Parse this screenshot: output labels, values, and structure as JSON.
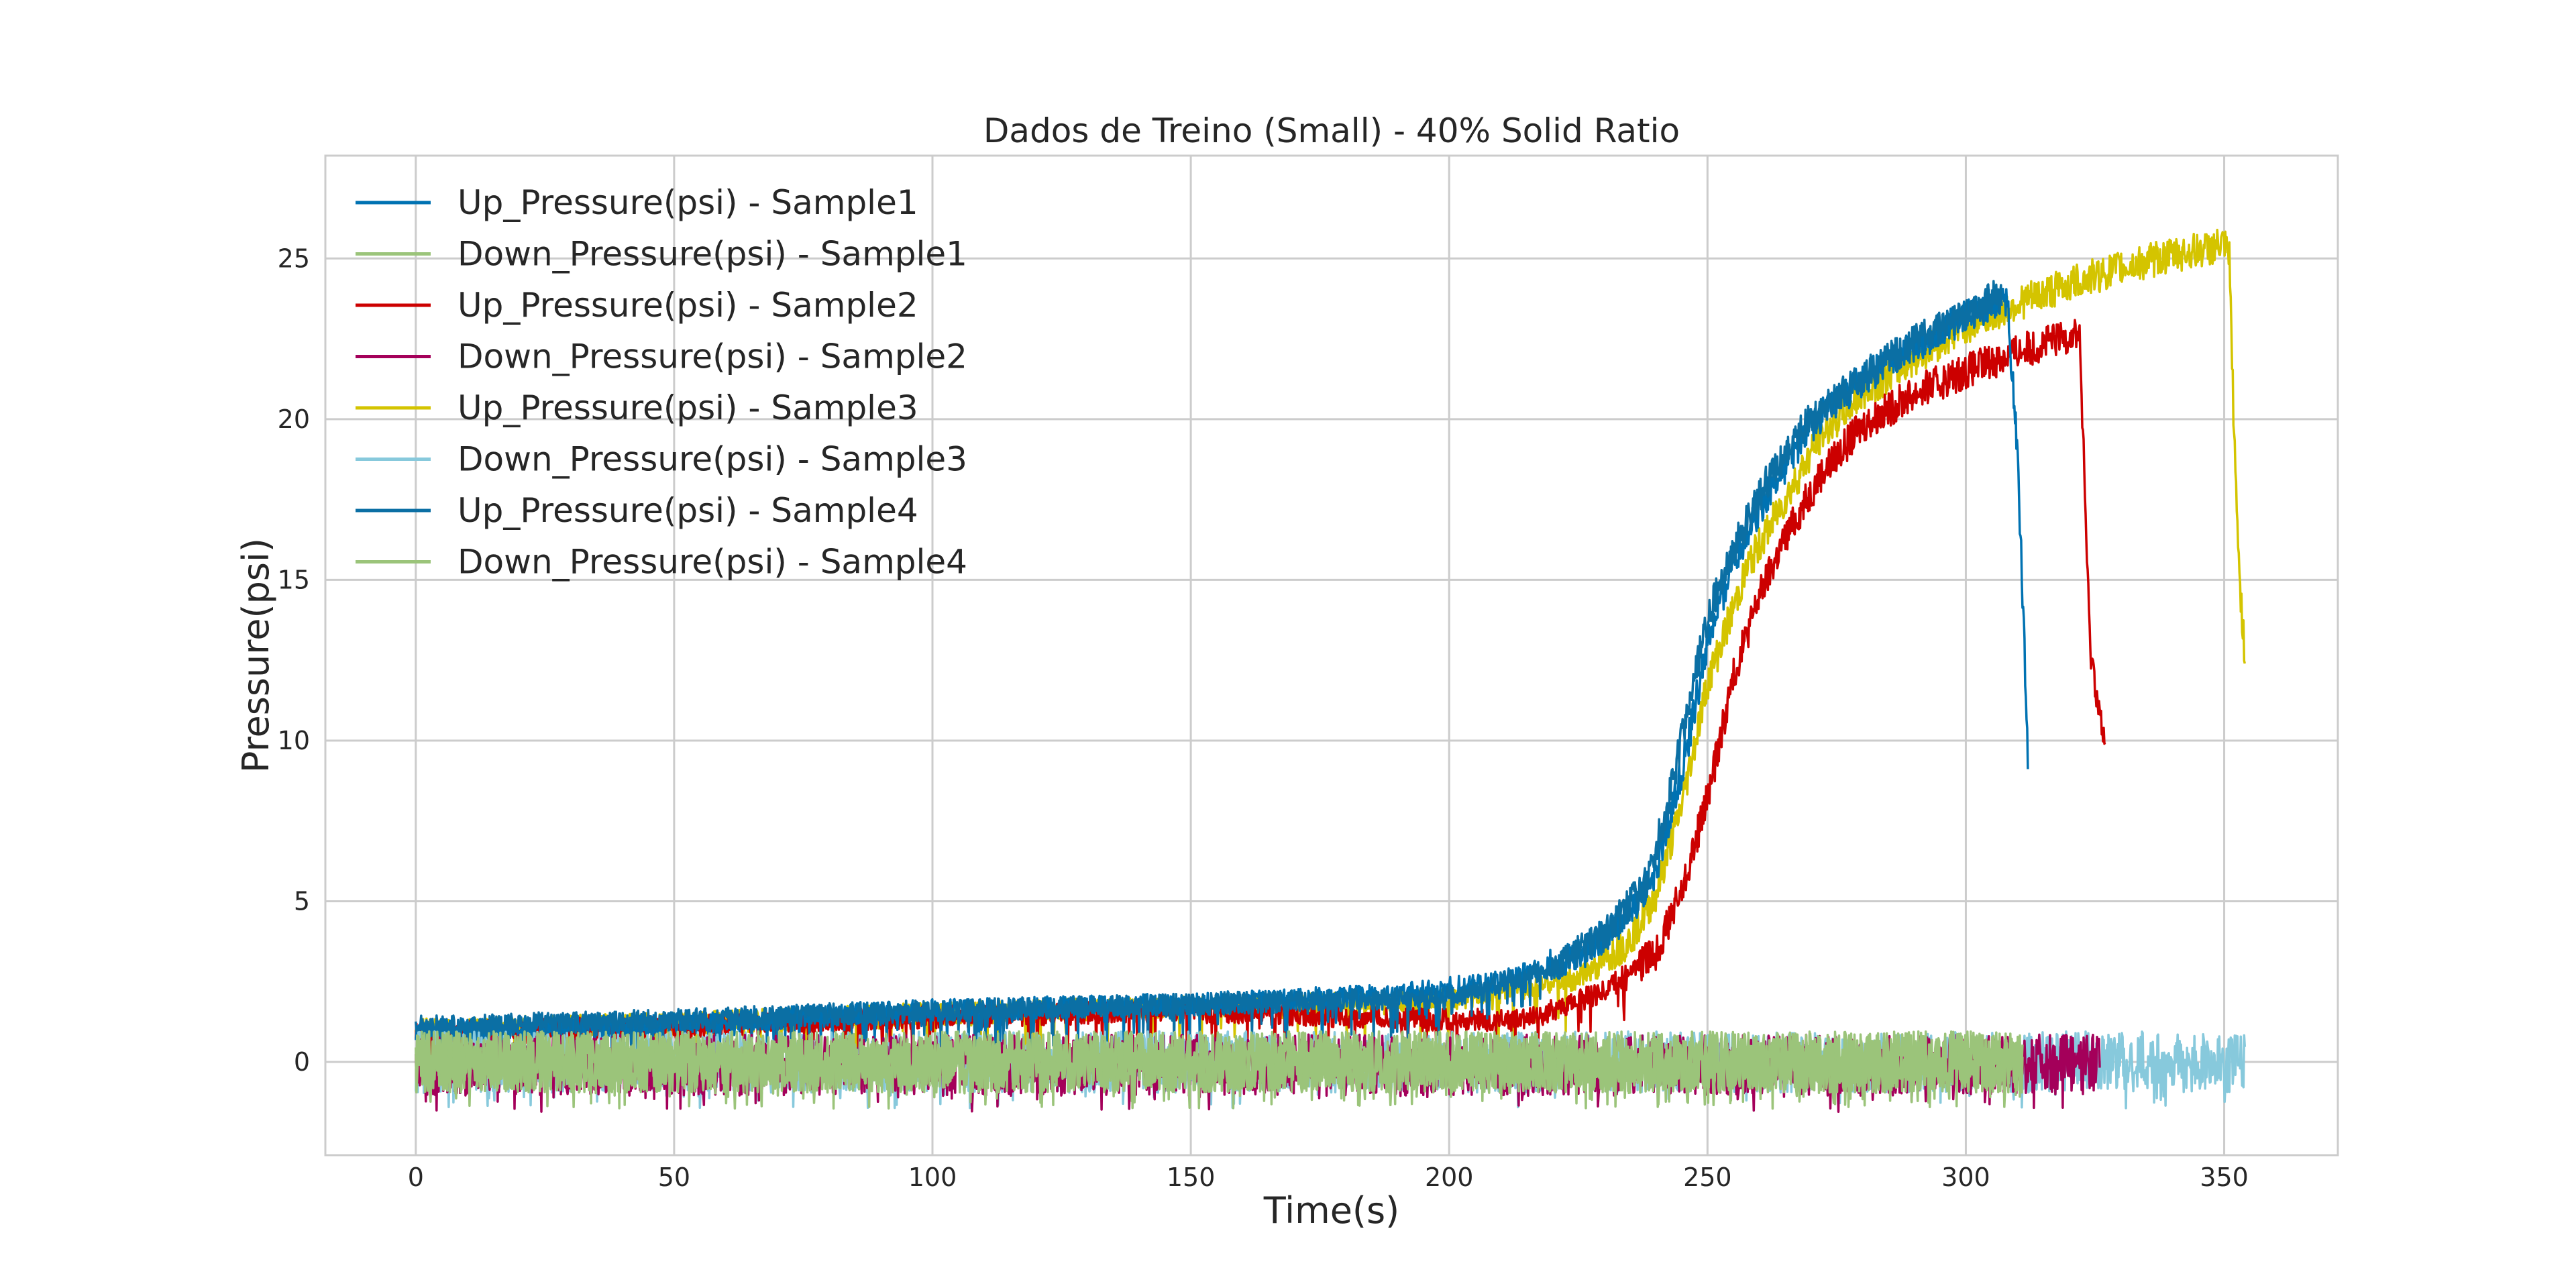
{
  "chart_data": {
    "type": "line",
    "title": "Dados de Treino (Small) - 40% Solid Ratio",
    "xlabel": "Time(s)",
    "ylabel": "Pressure(psi)",
    "xlim": [
      -17.5,
      372
    ],
    "ylim": [
      -2.9,
      28.2
    ],
    "xticks": [
      0,
      50,
      100,
      150,
      200,
      250,
      300,
      350
    ],
    "yticks": [
      0,
      5,
      10,
      15,
      20,
      25
    ],
    "grid": true,
    "legend_position": "top-left",
    "series": [
      {
        "name": "Up_Pressure(psi) - Sample1",
        "color": "#0072B2",
        "points": [
          [
            0,
            1.0
          ],
          [
            50,
            1.2
          ],
          [
            100,
            1.6
          ],
          [
            150,
            1.8
          ],
          [
            190,
            2.1
          ],
          [
            210,
            2.5
          ],
          [
            225,
            3.3
          ],
          [
            235,
            4.6
          ],
          [
            240,
            6.0
          ],
          [
            245,
            9.0
          ],
          [
            250,
            13.0
          ],
          [
            255,
            15.6
          ],
          [
            262,
            17.8
          ],
          [
            270,
            19.8
          ],
          [
            280,
            21.2
          ],
          [
            290,
            22.3
          ],
          [
            300,
            23.2
          ],
          [
            308,
            23.8
          ],
          [
            310,
            19.0
          ],
          [
            312,
            9.6
          ]
        ]
      },
      {
        "name": "Down_Pressure(psi) - Sample1",
        "color": "#9BC47A",
        "points": [
          [
            0,
            0.0
          ],
          [
            100,
            0.0
          ],
          [
            200,
            0.0
          ],
          [
            250,
            0.0
          ],
          [
            300,
            0.0
          ],
          [
            311,
            0.0
          ]
        ]
      },
      {
        "name": "Up_Pressure(psi) - Sample2",
        "color": "#CC0000",
        "points": [
          [
            0,
            0.9
          ],
          [
            50,
            1.1
          ],
          [
            100,
            1.4
          ],
          [
            150,
            1.6
          ],
          [
            200,
            1.3
          ],
          [
            215,
            1.3
          ],
          [
            230,
            2.2
          ],
          [
            240,
            3.4
          ],
          [
            245,
            5.3
          ],
          [
            250,
            8.2
          ],
          [
            255,
            12.0
          ],
          [
            260,
            14.5
          ],
          [
            265,
            16.3
          ],
          [
            272,
            18.3
          ],
          [
            280,
            19.8
          ],
          [
            290,
            20.8
          ],
          [
            300,
            21.5
          ],
          [
            310,
            22.1
          ],
          [
            320,
            22.6
          ],
          [
            322,
            22.7
          ],
          [
            324,
            13.0
          ],
          [
            327,
            9.6
          ]
        ]
      },
      {
        "name": "Down_Pressure(psi) - Sample2",
        "color": "#A4005A",
        "points": [
          [
            0,
            -0.1
          ],
          [
            100,
            -0.1
          ],
          [
            200,
            -0.1
          ],
          [
            250,
            -0.1
          ],
          [
            300,
            -0.1
          ],
          [
            326,
            -0.1
          ]
        ]
      },
      {
        "name": "Up_Pressure(psi) - Sample3",
        "color": "#D4C400",
        "points": [
          [
            0,
            1.0
          ],
          [
            50,
            1.2
          ],
          [
            100,
            1.5
          ],
          [
            150,
            1.7
          ],
          [
            200,
            1.9
          ],
          [
            225,
            2.6
          ],
          [
            235,
            3.8
          ],
          [
            240,
            5.2
          ],
          [
            245,
            8.0
          ],
          [
            250,
            11.8
          ],
          [
            258,
            15.5
          ],
          [
            265,
            17.5
          ],
          [
            272,
            19.5
          ],
          [
            280,
            20.8
          ],
          [
            290,
            21.9
          ],
          [
            300,
            22.9
          ],
          [
            310,
            23.6
          ],
          [
            320,
            24.2
          ],
          [
            330,
            24.7
          ],
          [
            340,
            25.1
          ],
          [
            350,
            25.4
          ],
          [
            351,
            25.0
          ],
          [
            352,
            19.0
          ],
          [
            353,
            15.0
          ],
          [
            354,
            12.6
          ]
        ]
      },
      {
        "name": "Down_Pressure(psi) - Sample3",
        "color": "#87C9DC",
        "points": [
          [
            0,
            0.0
          ],
          [
            100,
            0.0
          ],
          [
            200,
            0.0
          ],
          [
            250,
            0.0
          ],
          [
            300,
            0.0
          ],
          [
            354,
            0.0
          ]
        ]
      },
      {
        "name": "Up_Pressure(psi) - Sample4",
        "color": "#0B6FA4",
        "points": [
          [
            0,
            1.1
          ],
          [
            50,
            1.3
          ],
          [
            100,
            1.6
          ],
          [
            150,
            1.8
          ],
          [
            200,
            2.0
          ],
          [
            220,
            2.9
          ],
          [
            230,
            3.9
          ],
          [
            238,
            5.5
          ],
          [
            242,
            7.8
          ],
          [
            246,
            10.8
          ],
          [
            250,
            13.8
          ],
          [
            256,
            16.3
          ],
          [
            262,
            18.2
          ],
          [
            270,
            20.0
          ],
          [
            280,
            21.3
          ],
          [
            290,
            22.4
          ],
          [
            300,
            23.3
          ],
          [
            307,
            23.9
          ]
        ]
      },
      {
        "name": "Down_Pressure(psi) - Sample4",
        "color": "#9BC47A",
        "points": [
          [
            0,
            0.0
          ],
          [
            100,
            0.0
          ],
          [
            200,
            0.0
          ],
          [
            250,
            0.0
          ],
          [
            300,
            0.0
          ],
          [
            311,
            0.0
          ]
        ]
      }
    ],
    "draw_order": [
      4,
      2,
      0,
      6,
      5,
      3,
      1,
      7
    ]
  }
}
